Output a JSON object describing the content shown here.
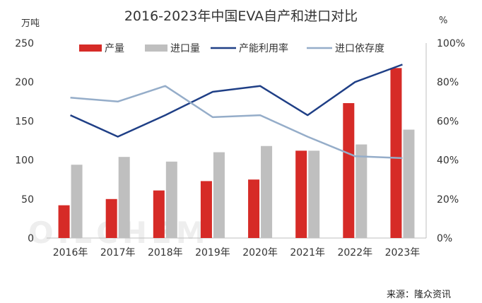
{
  "title": "2016-2023年中国EVA自产和进口对比",
  "left_unit": "万吨",
  "right_unit": "%",
  "source": "来源：隆众资讯",
  "watermark": "OILCHEM",
  "colors": {
    "production": "#d62b27",
    "import": "#bfbfbf",
    "utilization": "#1f3f86",
    "dependence": "#95adc9"
  },
  "chart_data": {
    "type": "bar",
    "categories": [
      "2016年",
      "2017年",
      "2018年",
      "2019年",
      "2020年",
      "2021年",
      "2022年",
      "2023年"
    ],
    "series": [
      {
        "name": "产量",
        "axis": "left",
        "kind": "bar",
        "values": [
          42,
          50,
          61,
          73,
          75,
          112,
          173,
          218
        ]
      },
      {
        "name": "进口量",
        "axis": "left",
        "kind": "bar",
        "values": [
          94,
          104,
          98,
          110,
          118,
          112,
          120,
          139
        ]
      },
      {
        "name": "产能利用率",
        "axis": "right",
        "kind": "line",
        "values": [
          63,
          52,
          63,
          75,
          78,
          63,
          80,
          89
        ]
      },
      {
        "name": "进口依存度",
        "axis": "right",
        "kind": "line",
        "values": [
          72,
          70,
          78,
          62,
          63,
          52,
          42,
          41
        ]
      }
    ],
    "y_left": {
      "min": 0,
      "max": 250,
      "ticks": [
        "0",
        "50",
        "100",
        "150",
        "200",
        "250"
      ]
    },
    "y_right": {
      "min": 0,
      "max": 100,
      "ticks": [
        "0%",
        "20%",
        "40%",
        "60%",
        "80%",
        "100%"
      ]
    },
    "legend_position": "top-center",
    "grid": false
  }
}
